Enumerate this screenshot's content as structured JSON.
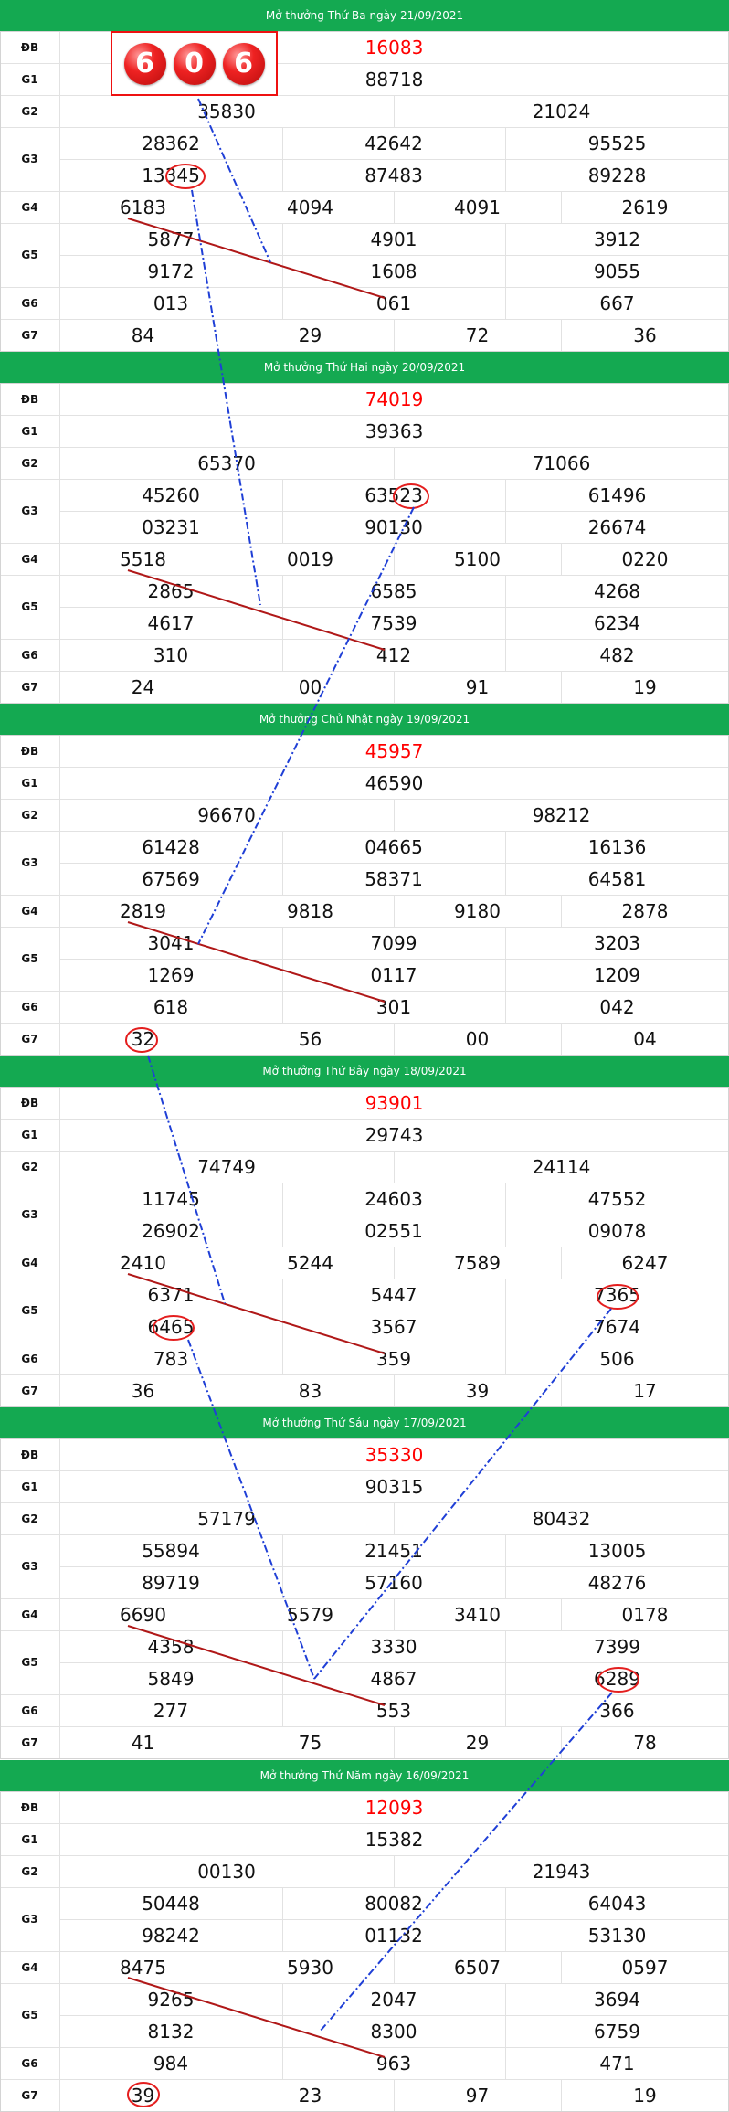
{
  "draws": [
    {
      "title": "Mở thưởng Thứ Ba ngày 21/09/2021",
      "labels": [
        "ĐB",
        "G1",
        "G2",
        "G3",
        "G4",
        "G5",
        "G6",
        "G7"
      ],
      "db": "16083",
      "g1": "88718",
      "g2": [
        "35830",
        "21024"
      ],
      "g3": [
        "28362",
        "42642",
        "95525",
        "13345",
        "87483",
        "89228"
      ],
      "g4": [
        "6183",
        "4094",
        "4091",
        "2619"
      ],
      "g5": [
        "5877",
        "4901",
        "3912",
        "9172",
        "1608",
        "9055"
      ],
      "g6": [
        "013",
        "061",
        "667"
      ],
      "g7": [
        "84",
        "29",
        "72",
        "36"
      ]
    },
    {
      "title": "Mở thưởng Thứ Hai ngày 20/09/2021",
      "labels": [
        "ĐB",
        "G1",
        "G2",
        "G3",
        "G4",
        "G5",
        "G6",
        "G7"
      ],
      "db": "74019",
      "g1": "39363",
      "g2": [
        "65370",
        "71066"
      ],
      "g3": [
        "45260",
        "63523",
        "61496",
        "03231",
        "90130",
        "26674"
      ],
      "g4": [
        "5518",
        "0019",
        "5100",
        "0220"
      ],
      "g5": [
        "2865",
        "6585",
        "4268",
        "4617",
        "7539",
        "6234"
      ],
      "g6": [
        "310",
        "412",
        "482"
      ],
      "g7": [
        "24",
        "00",
        "91",
        "19"
      ]
    },
    {
      "title": "Mở thưởng Chủ Nhật ngày 19/09/2021",
      "labels": [
        "ĐB",
        "G1",
        "G2",
        "G3",
        "G4",
        "G5",
        "G6",
        "G7"
      ],
      "db": "45957",
      "g1": "46590",
      "g2": [
        "96670",
        "98212"
      ],
      "g3": [
        "61428",
        "04665",
        "16136",
        "67569",
        "58371",
        "64581"
      ],
      "g4": [
        "2819",
        "9818",
        "9180",
        "2878"
      ],
      "g5": [
        "3041",
        "7099",
        "3203",
        "1269",
        "0117",
        "1209"
      ],
      "g6": [
        "618",
        "301",
        "042"
      ],
      "g7": [
        "32",
        "56",
        "00",
        "04"
      ]
    },
    {
      "title": "Mở thưởng Thứ Bảy ngày 18/09/2021",
      "labels": [
        "ĐB",
        "G1",
        "G2",
        "G3",
        "G4",
        "G5",
        "G6",
        "G7"
      ],
      "db": "93901",
      "g1": "29743",
      "g2": [
        "74749",
        "24114"
      ],
      "g3": [
        "11745",
        "24603",
        "47552",
        "26902",
        "02551",
        "09078"
      ],
      "g4": [
        "2410",
        "5244",
        "7589",
        "6247"
      ],
      "g5": [
        "6371",
        "5447",
        "7365",
        "6465",
        "3567",
        "7674"
      ],
      "g6": [
        "783",
        "359",
        "506"
      ],
      "g7": [
        "36",
        "83",
        "39",
        "17"
      ]
    },
    {
      "title": "Mở thưởng Thứ Sáu ngày 17/09/2021",
      "labels": [
        "ĐB",
        "G1",
        "G2",
        "G3",
        "G4",
        "G5",
        "G6",
        "G7"
      ],
      "db": "35330",
      "g1": "90315",
      "g2": [
        "57179",
        "80432"
      ],
      "g3": [
        "55894",
        "21451",
        "13005",
        "89719",
        "57160",
        "48276"
      ],
      "g4": [
        "6690",
        "5579",
        "3410",
        "0178"
      ],
      "g5": [
        "4358",
        "3330",
        "7399",
        "5849",
        "4867",
        "6289"
      ],
      "g6": [
        "277",
        "553",
        "366"
      ],
      "g7": [
        "41",
        "75",
        "29",
        "78"
      ]
    },
    {
      "title": "Mở thưởng Thứ Năm ngày 16/09/2021",
      "labels": [
        "ĐB",
        "G1",
        "G2",
        "G3",
        "G4",
        "G5",
        "G6",
        "G7"
      ],
      "db": "12093",
      "g1": "15382",
      "g2": [
        "00130",
        "21943"
      ],
      "g3": [
        "50448",
        "80082",
        "64043",
        "98242",
        "01132",
        "53130"
      ],
      "g4": [
        "8475",
        "5930",
        "6507",
        "0597"
      ],
      "g5": [
        "9265",
        "2047",
        "3694",
        "8132",
        "8300",
        "6759"
      ],
      "g6": [
        "984",
        "963",
        "471"
      ],
      "g7": [
        "39",
        "23",
        "97",
        "19"
      ]
    }
  ],
  "highlight_balls": [
    "6",
    "0",
    "6"
  ],
  "colors": {
    "header_bg": "#14a951",
    "special_prize": "#ff0000",
    "circle_mark": "#e41e1e",
    "trend_line_red": "#b01818",
    "trend_line_blue": "#1f3fd6",
    "grid": "#e2e2e2"
  }
}
